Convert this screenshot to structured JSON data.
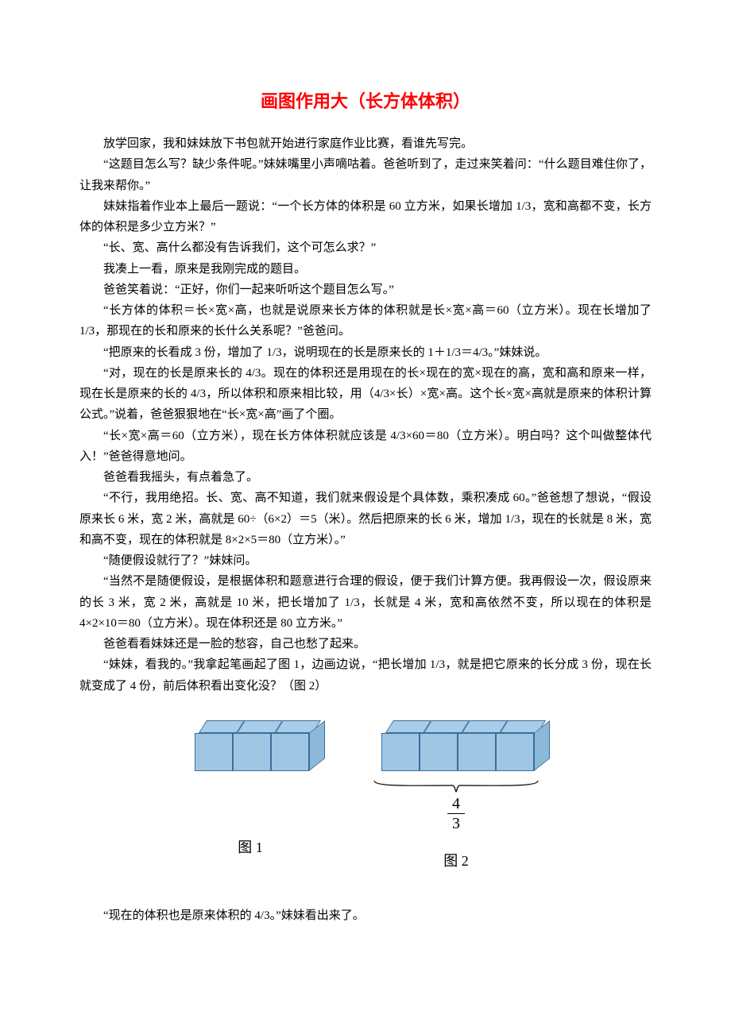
{
  "title": "画图作用大（长方体体积）",
  "paragraphs": [
    "放学回家，我和妹妹放下书包就开始进行家庭作业比赛，看谁先写完。",
    "“这题目怎么写？缺少条件呢。”妹妹嘴里小声嘀咕着。爸爸听到了，走过来笑着问：“什么题目难住你了，让我来帮你。”",
    "妹妹指着作业本上最后一题说：“一个长方体的体积是 60 立方米，如果长增加 1/3，宽和高都不变，长方体的体积是多少立方米？”",
    "“长、宽、高什么都没有告诉我们，这个可怎么求？”",
    "我凑上一看，原来是我刚完成的题目。",
    "爸爸笑着说：“正好，你们一起来听听这个题目怎么写。”",
    "“长方体的体积＝长×宽×高，也就是说原来长方体的体积就是长×宽×高＝60（立方米）。现在长增加了 1/3，那现在的长和原来的长什么关系呢？”爸爸问。",
    "“把原来的长看成 3 份，增加了 1/3，说明现在的长是原来长的 1＋1/3＝4/3。”妹妹说。",
    "“对，现在的长是原来长的 4/3。现在的体积还是用现在的长×现在的宽×现在的高，宽和高和原来一样，现在长是原来的长的 4/3，所以体积和原来相比较，用（4/3×长）×宽×高。这个长×宽×高就是原来的体积计算公式。”说着，爸爸狠狠地在“长×宽×高”画了个圈。",
    "“长×宽×高＝60（立方米），现在长方体体积就应该是 4/3×60＝80（立方米）。明白吗？这个叫做整体代入！”爸爸得意地问。",
    "爸爸看我摇头，有点着急了。",
    "“不行，我用绝招。长、宽、高不知道，我们就来假设是个具体数，乘积凑成 60。”爸爸想了想说，“假设原来长 6 米，宽 2 米，高就是 60÷（6×2）＝5（米）。然后把原来的长 6 米，增加 1/3，现在的长就是 8 米，宽和高不变，现在的体积就是 8×2×5＝80（立方米）。”",
    "“随便假设就行了？”妹妹问。",
    "“当然不是随便假设，是根据体积和题意进行合理的假设，便于我们计算方便。我再假设一次，假设原来的长 3 米，宽 2 米，高就是 10 米，把长增加了 1/3，长就是 4 米，宽和高依然不变，所以现在的体积是 4×2×10＝80（立方米）。现在体积还是 80 立方米。”",
    "爸爸看看妹妹还是一脸的愁容，自己也愁了起来。",
    "“妹妹，看我的。”我拿起笔画起了图 1，边画边说，“把长增加 1/3，就是把它原来的长分成 3 份，现在长就变成了 4 份，前后体积看出变化没？（图 2）"
  ],
  "figure1": {
    "units": 3,
    "label": "图 1",
    "colors": {
      "front": "#9fc7e4",
      "top": "#a9cce8",
      "side": "#8cb9d8",
      "border": "#3c6d99"
    }
  },
  "figure2": {
    "units": 4,
    "label": "图 2",
    "fraction": {
      "num": "4",
      "den": "3"
    },
    "colors": {
      "front": "#9fc7e4",
      "top": "#a9cce8",
      "side": "#8cb9d8",
      "border": "#3c6d99"
    }
  },
  "closing": "“现在的体积也是原来体积的 4/3。”妹妹看出来了。"
}
